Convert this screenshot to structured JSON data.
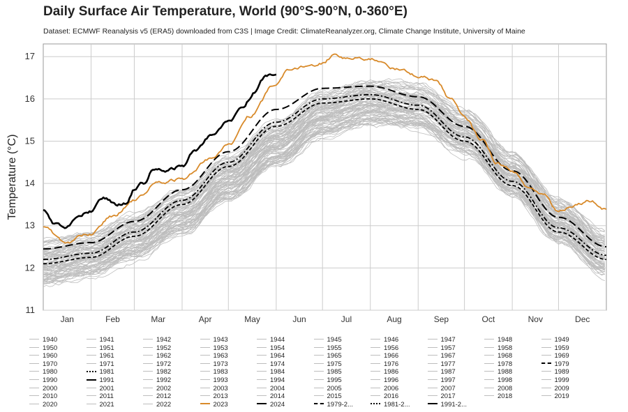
{
  "title": "Daily Surface Air Temperature, World (90°S-90°N, 0-360°E)",
  "subtitle": "Dataset: ECMWF Reanalysis v5 (ERA5) downloaded from C3S | Image Credit: ClimateReanalyzer.org, Climate Change Institute, University of Maine",
  "colors": {
    "year2023": "#d88a2a",
    "year2024": "#000000",
    "historical": "#bdbdbd",
    "mean": "#000000",
    "grid": "#cccccc"
  },
  "chart_data": {
    "type": "line",
    "title": "Daily Surface Air Temperature, World (90°S-90°N, 0-360°E)",
    "ylabel": "Temperature (°C)",
    "xlabel": "",
    "ylim": [
      11,
      17.3
    ],
    "xlim": [
      1,
      366
    ],
    "yticks": [
      11,
      12,
      13,
      14,
      15,
      16,
      17
    ],
    "months": [
      "Jan",
      "Feb",
      "Mar",
      "Apr",
      "May",
      "Jun",
      "Jul",
      "Aug",
      "Sep",
      "Oct",
      "Nov",
      "Dec"
    ],
    "grid": true,
    "historical_years": {
      "start": 1940,
      "end": 2022,
      "baseline": [
        12.1,
        12.3,
        12.7,
        13.3,
        14.1,
        14.9,
        15.6,
        15.9,
        15.8,
        15.2,
        14.2,
        13.1,
        12.3
      ],
      "trend_per_year": 0.011,
      "spread": 0.25
    },
    "series": [
      {
        "name": "1979-2000 mean",
        "style": "dashed",
        "x": [
          1,
          32,
          60,
          91,
          121,
          152,
          182,
          213,
          244,
          274,
          305,
          335,
          366
        ],
        "values": [
          12.1,
          12.25,
          12.75,
          13.5,
          14.4,
          15.35,
          15.9,
          16.0,
          15.75,
          15.0,
          13.95,
          12.85,
          12.2
        ]
      },
      {
        "name": "1981-2010 mean",
        "style": "dashdot",
        "x": [
          1,
          32,
          60,
          91,
          121,
          152,
          182,
          213,
          244,
          274,
          305,
          335,
          366
        ],
        "values": [
          12.2,
          12.35,
          12.85,
          13.6,
          14.5,
          15.45,
          16.0,
          16.1,
          15.85,
          15.1,
          14.05,
          12.95,
          12.3
        ]
      },
      {
        "name": "1991-2020 mean",
        "style": "longdash",
        "x": [
          1,
          32,
          60,
          91,
          121,
          152,
          182,
          213,
          244,
          274,
          305,
          335,
          366
        ],
        "values": [
          12.45,
          12.6,
          13.1,
          13.85,
          14.75,
          15.75,
          16.25,
          16.3,
          16.05,
          15.35,
          14.3,
          13.2,
          12.5
        ]
      },
      {
        "name": "2023",
        "style": "solid",
        "x": [
          1,
          15,
          32,
          45,
          60,
          75,
          91,
          110,
          121,
          135,
          152,
          160,
          170,
          182,
          190,
          200,
          213,
          220,
          230,
          244,
          255,
          265,
          274,
          285,
          295,
          305,
          315,
          325,
          335,
          345,
          355,
          366
        ],
        "values": [
          13.0,
          12.6,
          12.8,
          13.2,
          13.6,
          14.0,
          14.1,
          14.6,
          14.9,
          15.6,
          16.35,
          16.65,
          16.75,
          16.85,
          17.05,
          16.95,
          16.95,
          16.9,
          16.7,
          16.55,
          16.45,
          16.0,
          15.55,
          15.05,
          14.5,
          14.3,
          13.9,
          13.75,
          13.35,
          13.5,
          13.6,
          13.4
        ]
      },
      {
        "name": "2024",
        "style": "solid",
        "x": [
          1,
          8,
          15,
          22,
          32,
          40,
          48,
          55,
          60,
          66,
          72,
          80,
          91,
          100,
          110,
          121,
          130,
          138,
          145,
          152
        ],
        "values": [
          13.4,
          13.05,
          12.95,
          13.15,
          13.35,
          13.65,
          13.5,
          13.55,
          13.85,
          14.0,
          14.3,
          14.3,
          14.4,
          14.8,
          15.15,
          15.45,
          15.8,
          16.15,
          16.5,
          16.6
        ]
      }
    ]
  },
  "legend": {
    "columns": 10,
    "items": [
      "1940",
      "1941",
      "1942",
      "1943",
      "1944",
      "1945",
      "1946",
      "1947",
      "1948",
      "1949",
      "1950",
      "1951",
      "1952",
      "1953",
      "1954",
      "1955",
      "1956",
      "1957",
      "1958",
      "1959",
      "1960",
      "1961",
      "1962",
      "1963",
      "1964",
      "1965",
      "1966",
      "1967",
      "1968",
      "1969",
      "1970",
      "1971",
      "1972",
      "1973",
      "1974",
      "1975",
      "1976",
      "1977",
      "1978",
      "1979",
      "1980",
      "1981",
      "1982",
      "1983",
      "1984",
      "1985",
      "1986",
      "1987",
      "1988",
      "1989",
      "1990",
      "1991",
      "1992",
      "1993",
      "1994",
      "1995",
      "1996",
      "1997",
      "1998",
      "1999",
      "2000",
      "2001",
      "2002",
      "2003",
      "2004",
      "2005",
      "2006",
      "2007",
      "2008",
      "2009",
      "2010",
      "2011",
      "2012",
      "2013",
      "2014",
      "2015",
      "2016",
      "2017",
      "2018",
      "2019",
      "2020",
      "2021",
      "2022",
      "2023",
      "2024",
      "1979-2...",
      "1981-2...",
      "1991-2..."
    ]
  }
}
